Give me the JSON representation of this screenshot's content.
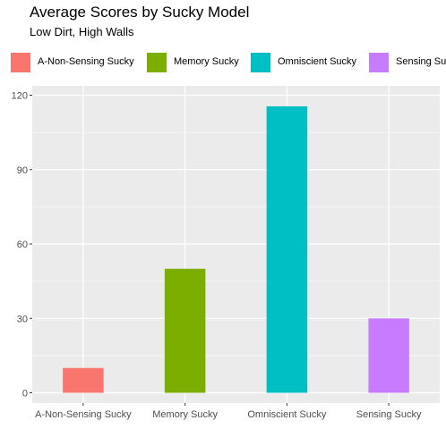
{
  "chart_data": {
    "type": "bar",
    "title": "Average Scores by Sucky Model",
    "subtitle": "Low Dirt, High Walls",
    "xlabel": "",
    "ylabel": "",
    "categories": [
      "A-Non-Sensing Sucky",
      "Memory Sucky",
      "Omniscient Sucky",
      "Sensing Sucky"
    ],
    "values": [
      10,
      50,
      115.5,
      30
    ],
    "colors": [
      "#F8766D",
      "#7CAE00",
      "#00BFC4",
      "#C77CFF"
    ],
    "ylim": [
      0,
      120
    ],
    "yticks": [
      0,
      30,
      60,
      90,
      120
    ],
    "grid": true,
    "legend_position": "top",
    "legend_entries": [
      "A-Non-Sensing Sucky",
      "Memory Sucky",
      "Omniscient Sucky",
      "Sensing Sucky"
    ]
  }
}
